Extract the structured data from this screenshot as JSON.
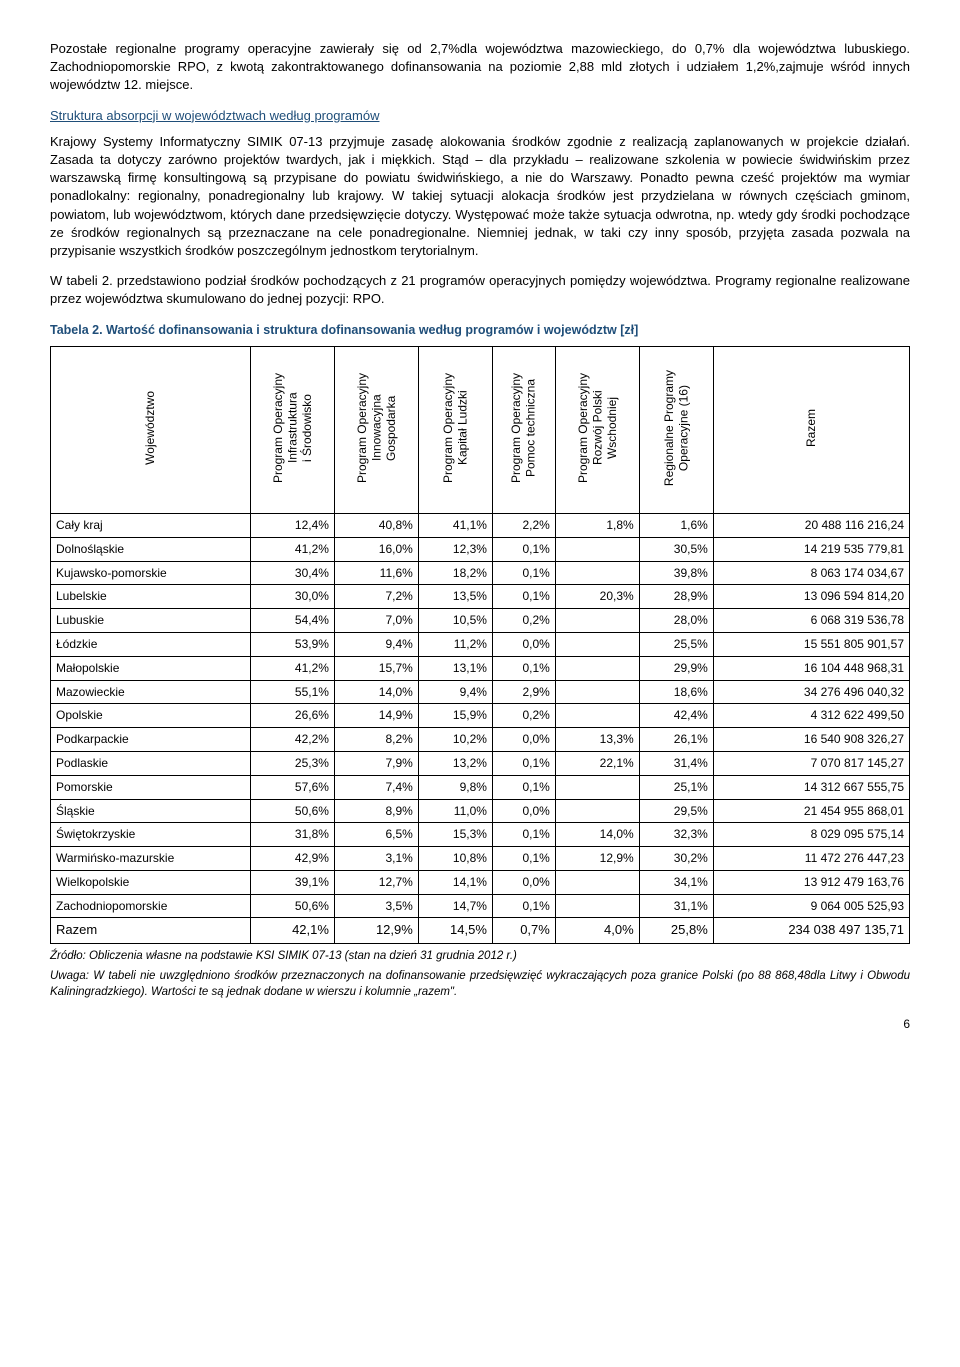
{
  "para1": "Pozostałe regionalne programy operacyjne zawierały się od 2,7%dla województwa mazowieckiego, do 0,7% dla województwa lubuskiego. Zachodniopomorskie RPO, z kwotą zakontraktowanego dofinansowania na poziomie 2,88 mld złotych i udziałem 1,2%,zajmuje wśród innych województw 12. miejsce.",
  "subheading": "Struktura absorpcji w województwach według programów",
  "para2": "Krajowy Systemy Informatyczny SIMIK 07-13 przyjmuje zasadę alokowania środków zgodnie z realizacją zaplanowanych w projekcie działań. Zasada ta dotyczy zarówno projektów twardych, jak i miękkich. Stąd – dla przykładu – realizowane szkolenia w powiecie świdwińskim przez warszawską firmę konsultingową są przypisane do powiatu świdwińskiego, a nie do Warszawy. Ponadto pewna cześć projektów ma wymiar ponadlokalny: regionalny, ponadregionalny lub krajowy. W takiej sytuacji alokacja środków jest przydzielana w równych częściach gminom, powiatom, lub województwom, których dane przedsięwzięcie dotyczy. Występować może także sytuacja odwrotna, np. wtedy gdy środki pochodzące ze środków regionalnych są przeznaczane na cele ponadregionalne. Niemniej jednak, w taki czy inny sposób, przyjęta zasada pozwala na przypisanie wszystkich środków poszczególnym jednostkom terytorialnym.",
  "para3": "W tabeli 2. przedstawiono podział środków pochodzących z 21 programów operacyjnych pomiędzy województwa. Programy regionalne realizowane przez województwa skumulowano do jednej pozycji: RPO.",
  "table_caption": "Tabela 2.    Wartość dofinansowania i struktura dofinansowania według programów i województw [zł]",
  "columns": [
    "Województwo",
    "Program Operacyjny\nInfrastruktura\ni Środowisko",
    "Program Operacyjny\nInnowacyjna\nGospodarka",
    "Program Operacyjny\nKapitał Ludzki",
    "Program Operacyjny\nPomoc techniczna",
    "Program Operacyjny\nRozwój Polski\nWschodniej",
    "Regionalne Programy\nOperacyjne (16)",
    "Razem"
  ],
  "rows": [
    [
      "Cały kraj",
      "12,4%",
      "40,8%",
      "41,1%",
      "2,2%",
      "1,8%",
      "1,6%",
      "20 488 116 216,24"
    ],
    [
      "Dolnośląskie",
      "41,2%",
      "16,0%",
      "12,3%",
      "0,1%",
      "",
      "30,5%",
      "14 219 535 779,81"
    ],
    [
      "Kujawsko-pomorskie",
      "30,4%",
      "11,6%",
      "18,2%",
      "0,1%",
      "",
      "39,8%",
      "8 063 174 034,67"
    ],
    [
      "Lubelskie",
      "30,0%",
      "7,2%",
      "13,5%",
      "0,1%",
      "20,3%",
      "28,9%",
      "13 096 594 814,20"
    ],
    [
      "Lubuskie",
      "54,4%",
      "7,0%",
      "10,5%",
      "0,2%",
      "",
      "28,0%",
      "6 068 319 536,78"
    ],
    [
      "Łódzkie",
      "53,9%",
      "9,4%",
      "11,2%",
      "0,0%",
      "",
      "25,5%",
      "15 551 805 901,57"
    ],
    [
      "Małopolskie",
      "41,2%",
      "15,7%",
      "13,1%",
      "0,1%",
      "",
      "29,9%",
      "16 104 448 968,31"
    ],
    [
      "Mazowieckie",
      "55,1%",
      "14,0%",
      "9,4%",
      "2,9%",
      "",
      "18,6%",
      "34 276 496 040,32"
    ],
    [
      "Opolskie",
      "26,6%",
      "14,9%",
      "15,9%",
      "0,2%",
      "",
      "42,4%",
      "4 312 622 499,50"
    ],
    [
      "Podkarpackie",
      "42,2%",
      "8,2%",
      "10,2%",
      "0,0%",
      "13,3%",
      "26,1%",
      "16 540 908 326,27"
    ],
    [
      "Podlaskie",
      "25,3%",
      "7,9%",
      "13,2%",
      "0,1%",
      "22,1%",
      "31,4%",
      "7 070 817 145,27"
    ],
    [
      "Pomorskie",
      "57,6%",
      "7,4%",
      "9,8%",
      "0,1%",
      "",
      "25,1%",
      "14 312 667 555,75"
    ],
    [
      "Śląskie",
      "50,6%",
      "8,9%",
      "11,0%",
      "0,0%",
      "",
      "29,5%",
      "21 454 955 868,01"
    ],
    [
      "Świętokrzyskie",
      "31,8%",
      "6,5%",
      "15,3%",
      "0,1%",
      "14,0%",
      "32,3%",
      "8 029 095 575,14"
    ],
    [
      "Warmińsko-mazurskie",
      "42,9%",
      "3,1%",
      "10,8%",
      "0,1%",
      "12,9%",
      "30,2%",
      "11 472 276 447,23"
    ],
    [
      "Wielkopolskie",
      "39,1%",
      "12,7%",
      "14,1%",
      "0,0%",
      "",
      "34,1%",
      "13 912 479 163,76"
    ],
    [
      "Zachodniopomorskie",
      "50,6%",
      "3,5%",
      "14,7%",
      "0,1%",
      "",
      "31,1%",
      "9 064 005 525,93"
    ],
    [
      "Razem",
      "42,1%",
      "12,9%",
      "14,5%",
      "0,7%",
      "4,0%",
      "25,8%",
      "234 038 497 135,71"
    ]
  ],
  "footnote1": "Źródło: Obliczenia własne na podstawie KSI SIMIK 07-13 (stan na dzień 31 grudnia 2012 r.)",
  "footnote2": "Uwaga: W tabeli nie uwzględniono środków przeznaczonych na dofinansowanie przedsięwzięć wykraczających poza granice Polski (po 88 868,48dla Litwy i Obwodu Kaliningradzkiego). Wartości te są jednak dodane w wierszu i kolumnie „razem\".",
  "pagenum": "6"
}
